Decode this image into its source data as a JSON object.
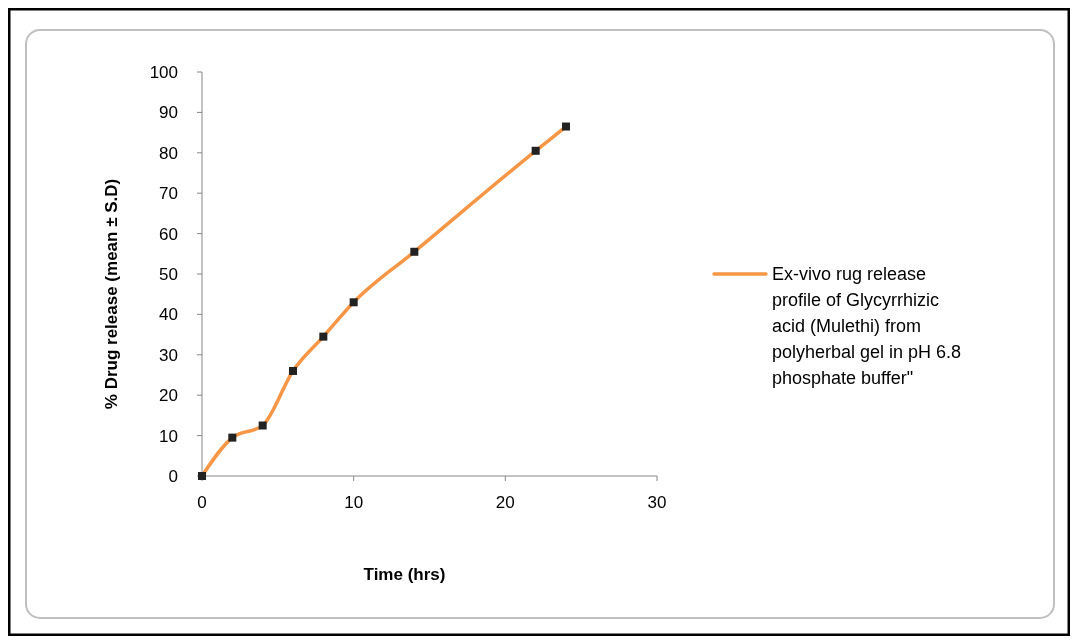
{
  "chart_data": {
    "type": "line",
    "xlabel": "Time (hrs)",
    "ylabel": "% Drug release (mean ± S.D)",
    "x": [
      0,
      2,
      4,
      6,
      8,
      10,
      14,
      22,
      24
    ],
    "series": [
      {
        "name": "Ex-vivo rug release profile of Glycyrrhizic acid (Mulethi) from polyherbal gel in pH 6.8 phosphate buffer\"",
        "color": "#f79646",
        "values": [
          0,
          9.5,
          12.5,
          26,
          34.5,
          43,
          55.5,
          80.5,
          86.5
        ]
      }
    ],
    "xlim": [
      0,
      30
    ],
    "ylim": [
      0,
      100
    ],
    "xticks": [
      0,
      10,
      20,
      30
    ],
    "yticks": [
      0,
      10,
      20,
      30,
      40,
      50,
      60,
      70,
      80,
      90,
      100
    ],
    "grid": false,
    "legend": "right",
    "marker": "square",
    "line_style": "solid"
  }
}
